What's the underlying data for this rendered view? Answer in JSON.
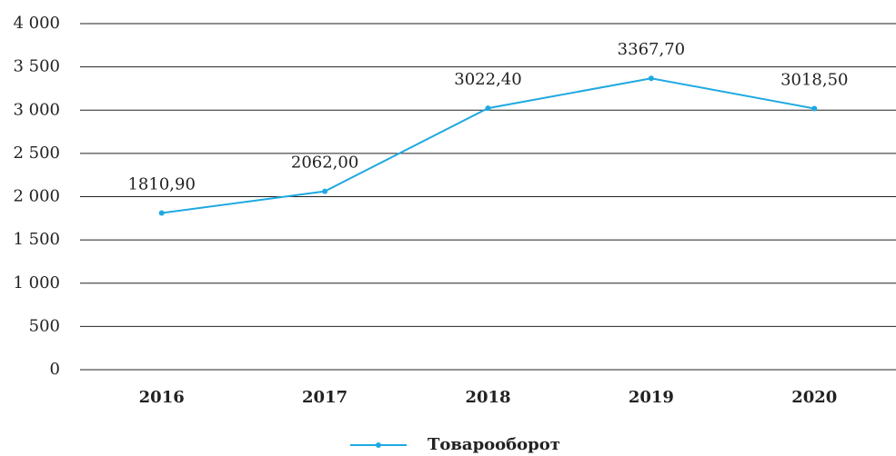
{
  "chart_data": {
    "type": "line",
    "categories": [
      "2016",
      "2017",
      "2018",
      "2019",
      "2020"
    ],
    "series": [
      {
        "name": "Товарооборот",
        "color": "#1fa9e1",
        "values": [
          1810.9,
          2062.0,
          3022.4,
          3367.7,
          3018.5
        ],
        "value_labels": [
          "1810,90",
          "2062,00",
          "3022,40",
          "3367,70",
          "3018,50"
        ]
      }
    ],
    "ylim": [
      0,
      4000
    ],
    "yticks": [
      0,
      500,
      {
        "value": 1000,
        "label": "1 000"
      },
      {
        "value": 1500,
        "label": "1 500"
      },
      {
        "value": 2000,
        "label": "2 000"
      },
      {
        "value": 2500,
        "label": "2 500"
      },
      {
        "value": 3000,
        "label": "3 000"
      },
      {
        "value": 3500,
        "label": "3 500"
      },
      {
        "value": 4000,
        "label": "4 000"
      }
    ],
    "grid": true,
    "legend": "bottom"
  }
}
